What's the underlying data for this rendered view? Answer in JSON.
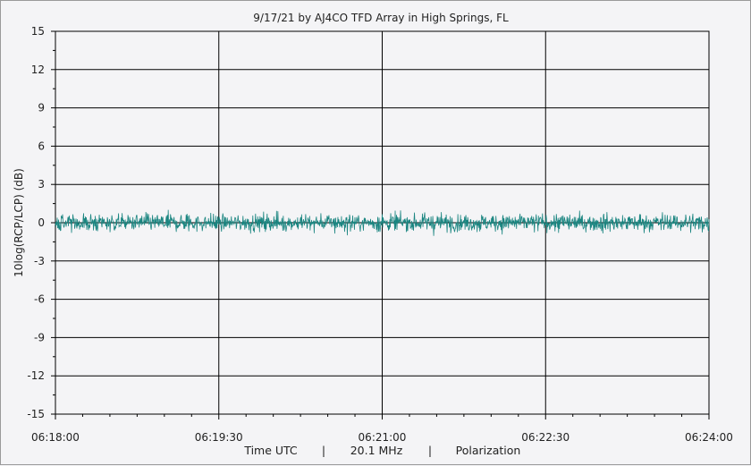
{
  "chart_data": {
    "type": "line",
    "title": "9/17/21  by  AJ4CO TFD Array  in  High Springs, FL",
    "ylabel": "10log(RCP/LCP) (dB)",
    "xlabel_parts": [
      "Time UTC",
      "|",
      "20.1 MHz",
      "|",
      "Polarization"
    ],
    "ylim": [
      -15,
      15
    ],
    "yticks": [
      "15",
      "12",
      "9",
      "6",
      "3",
      "0",
      "-3",
      "-6",
      "-9",
      "-12",
      "-15"
    ],
    "xlim": [
      "06:18:00",
      "06:24:00"
    ],
    "xticks": [
      "06:18:00",
      "06:19:30",
      "06:21:00",
      "06:22:30",
      "06:24:00"
    ],
    "grid": true,
    "series": [
      {
        "color": "#1a8580",
        "mean": 0,
        "noise_std": 0.35,
        "noise_peak": 1.2
      }
    ]
  }
}
